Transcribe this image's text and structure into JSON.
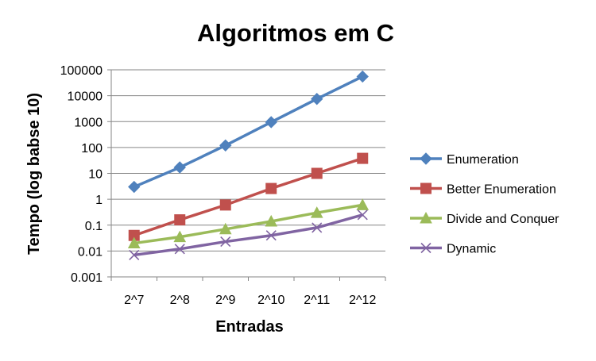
{
  "chart_data": {
    "type": "line",
    "title": "Algoritmos em C",
    "xlabel": "Entradas",
    "ylabel": "Tempo (log babse 10)",
    "yscale": "log",
    "ylim": [
      0.001,
      100000
    ],
    "yticks": [
      "0.001",
      "0.01",
      "0.1",
      "1",
      "10",
      "100",
      "1000",
      "10000",
      "100000"
    ],
    "categories": [
      "2^7",
      "2^8",
      "2^9",
      "2^10",
      "2^11",
      "2^12"
    ],
    "grid": true,
    "legend_position": "right",
    "series": [
      {
        "name": "Enumeration",
        "color": "#4F81BD",
        "marker": "diamond",
        "values": [
          3,
          17,
          120,
          950,
          7500,
          55000
        ]
      },
      {
        "name": "Better Enumeration",
        "color": "#C0504D",
        "marker": "square",
        "values": [
          0.04,
          0.16,
          0.6,
          2.6,
          10,
          38
        ]
      },
      {
        "name": "Divide and Conquer",
        "color": "#9BBB59",
        "marker": "triangle",
        "values": [
          0.02,
          0.035,
          0.07,
          0.14,
          0.3,
          0.6
        ]
      },
      {
        "name": "Dynamic",
        "color": "#8064A2",
        "marker": "x",
        "values": [
          0.007,
          0.012,
          0.023,
          0.04,
          0.08,
          0.25
        ]
      }
    ]
  }
}
